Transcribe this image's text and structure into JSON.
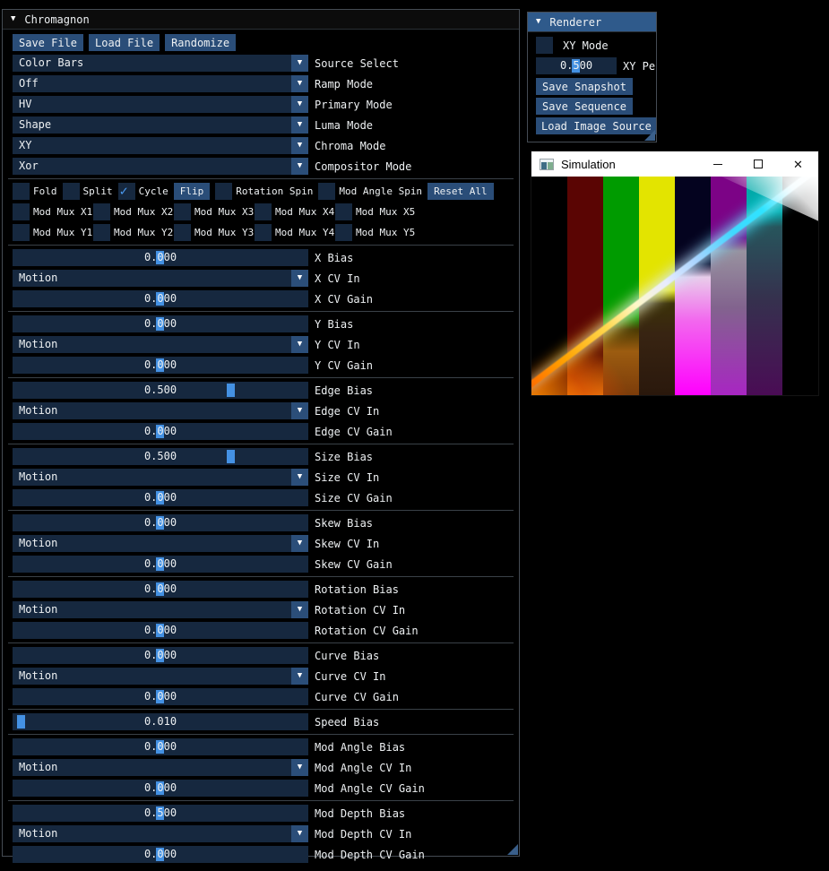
{
  "icons": {
    "collapse_arrow": "▼",
    "combo_arrow": "▼",
    "checkmark": "✓",
    "close_glyph": "✕"
  },
  "colors": {
    "accent_blue": "#4491e3",
    "button_blue": "#2a4d78",
    "frame_navy": "#16283f",
    "title_active_blue": "#2f5a8b",
    "checkmark_blue": "#4a9af0"
  },
  "main_window": {
    "title": "Chromagnon",
    "toolbar": {
      "save_file": "Save File",
      "load_file": "Load File",
      "randomize": "Randomize"
    },
    "combos": [
      {
        "value": "Color Bars",
        "label": "Source Select"
      },
      {
        "value": "Off",
        "label": "Ramp Mode"
      },
      {
        "value": "HV",
        "label": "Primary Mode"
      },
      {
        "value": "Shape",
        "label": "Luma Mode"
      },
      {
        "value": "XY",
        "label": "Chroma Mode"
      },
      {
        "value": "Xor",
        "label": "Compositor Mode"
      }
    ],
    "toggles": {
      "fold": "Fold",
      "split": "Split",
      "cycle": "Cycle",
      "flip": "Flip",
      "rotation_spin": "Rotation Spin",
      "mod_angle_spin": "Mod Angle Spin",
      "reset_all": "Reset All"
    },
    "mod_mux_x": [
      "Mod Mux X1",
      "Mod Mux X2",
      "Mod Mux X3",
      "Mod Mux X4",
      "Mod Mux X5"
    ],
    "mod_mux_y": [
      "Mod Mux Y1",
      "Mod Mux Y2",
      "Mod Mux Y3",
      "Mod Mux Y4",
      "Mod Mux Y5"
    ],
    "groups": [
      {
        "rows": [
          {
            "type": "slider",
            "value": "0.000",
            "label": "X Bias"
          },
          {
            "type": "combo",
            "value": "Motion",
            "label": "X CV In"
          },
          {
            "type": "slider",
            "value": "0.000",
            "label": "X CV Gain"
          }
        ]
      },
      {
        "rows": [
          {
            "type": "slider",
            "value": "0.000",
            "label": "Y Bias"
          },
          {
            "type": "combo",
            "value": "Motion",
            "label": "Y CV In"
          },
          {
            "type": "slider",
            "value": "0.000",
            "label": "Y CV Gain"
          }
        ]
      },
      {
        "rows": [
          {
            "type": "slider",
            "value": "0.500",
            "label": "Edge Bias"
          },
          {
            "type": "combo",
            "value": "Motion",
            "label": "Edge CV In"
          },
          {
            "type": "slider",
            "value": "0.000",
            "label": "Edge CV Gain"
          }
        ]
      },
      {
        "rows": [
          {
            "type": "slider",
            "value": "0.500",
            "label": "Size Bias"
          },
          {
            "type": "combo",
            "value": "Motion",
            "label": "Size CV In"
          },
          {
            "type": "slider",
            "value": "0.000",
            "label": "Size CV Gain"
          }
        ]
      },
      {
        "rows": [
          {
            "type": "slider",
            "value": "0.000",
            "label": "Skew Bias"
          },
          {
            "type": "combo",
            "value": "Motion",
            "label": "Skew CV In"
          },
          {
            "type": "slider",
            "value": "0.000",
            "label": "Skew CV Gain"
          }
        ]
      },
      {
        "rows": [
          {
            "type": "slider",
            "value": "0.000",
            "label": "Rotation Bias"
          },
          {
            "type": "combo",
            "value": "Motion",
            "label": "Rotation CV In"
          },
          {
            "type": "slider",
            "value": "0.000",
            "label": "Rotation CV Gain"
          }
        ]
      },
      {
        "rows": [
          {
            "type": "slider",
            "value": "0.000",
            "label": "Curve Bias"
          },
          {
            "type": "combo",
            "value": "Motion",
            "label": "Curve CV In"
          },
          {
            "type": "slider",
            "value": "0.000",
            "label": "Curve CV Gain"
          }
        ]
      },
      {
        "rows": [
          {
            "type": "slider",
            "value": "0.010",
            "label": "Speed Bias"
          }
        ]
      },
      {
        "rows": [
          {
            "type": "slider",
            "value": "0.000",
            "label": "Mod Angle Bias"
          },
          {
            "type": "combo",
            "value": "Motion",
            "label": "Mod Angle CV In"
          },
          {
            "type": "slider",
            "value": "0.000",
            "label": "Mod Angle CV Gain"
          }
        ]
      },
      {
        "rows": [
          {
            "type": "slider",
            "value": "0.500",
            "label": "Mod Depth Bias"
          },
          {
            "type": "combo",
            "value": "Motion",
            "label": "Mod Depth CV In"
          },
          {
            "type": "slider",
            "value": "0.000",
            "label": "Mod Depth CV Gain"
          }
        ]
      }
    ]
  },
  "renderer_window": {
    "title": "Renderer",
    "xy_mode_label": "XY Mode",
    "xy_slider_value": "0.500",
    "xy_slider_label": "XY Pe",
    "save_snapshot": "Save Snapshot",
    "save_sequence": "Save Sequence",
    "load_image_source": "Load Image Source"
  },
  "simulation_window": {
    "title": "Simulation",
    "bars": [
      {
        "style": "background:#000000"
      },
      {
        "style": "background:#5a0503"
      },
      {
        "style": "background:#009b00"
      },
      {
        "style": "background:#e3e400"
      },
      {
        "style": "background:#04031f"
      },
      {
        "style": "background:#7c0386"
      },
      {
        "style": "background:#00a9a9"
      },
      {
        "style": "background:#000000"
      }
    ],
    "below_beam": [
      {
        "style": "background:none"
      },
      {
        "style": "background:linear-gradient(180deg,rgba(0,0,0,0) 76%,#6b1a02 82%,#a85207 92%,#e8820f 100%)"
      },
      {
        "style": "background:linear-gradient(180deg,rgba(0,0,0,0) 64%,#4a3a02 70%,#9c5c10 80%,#7c3c0a 100%)"
      },
      {
        "style": "background:linear-gradient(180deg,rgba(0,0,0,0) 52%,#3c3208 58%,#382412 72%,#2a180c 100%)"
      },
      {
        "style": "background:linear-gradient(180deg,rgba(0,0,0,0) 40%,#e9cdea 46%,#f267ee 66%,#ff00fe 100%)"
      },
      {
        "style": "background:linear-gradient(180deg,rgba(0,0,0,0) 28%,#98929f 34%,#82638e 60%,#a826c2 100%)"
      },
      {
        "style": "background:linear-gradient(180deg,rgba(0,0,0,0) 16%,#27555c 23%,#35324e 55%,#4a0c55 100%)"
      },
      {
        "style": "background:none"
      }
    ],
    "corner_glow_style": "background:radial-gradient(ellipse 150px 100px at 0% 102%,rgba(255,140,0,0.95) 0%,rgba(220,70,0,0.6) 40%,rgba(120,30,0,0) 72%)",
    "beam_style": "background:linear-gradient(90deg,#ff6a00 0%,#ffa200 12%,#ffd84d 26%,#fff8c8 36%,#e8ecff 46%,#a8d4ff 56%,#40d8ff 68%,#2ee4ff 78%,#c8f4ff 88%,#ffffff 100%)",
    "wedge_style": "background:linear-gradient(225deg,#ffffff 0%,rgba(255,255,255,0.85) 22%,rgba(255,255,255,0) 62%)"
  }
}
